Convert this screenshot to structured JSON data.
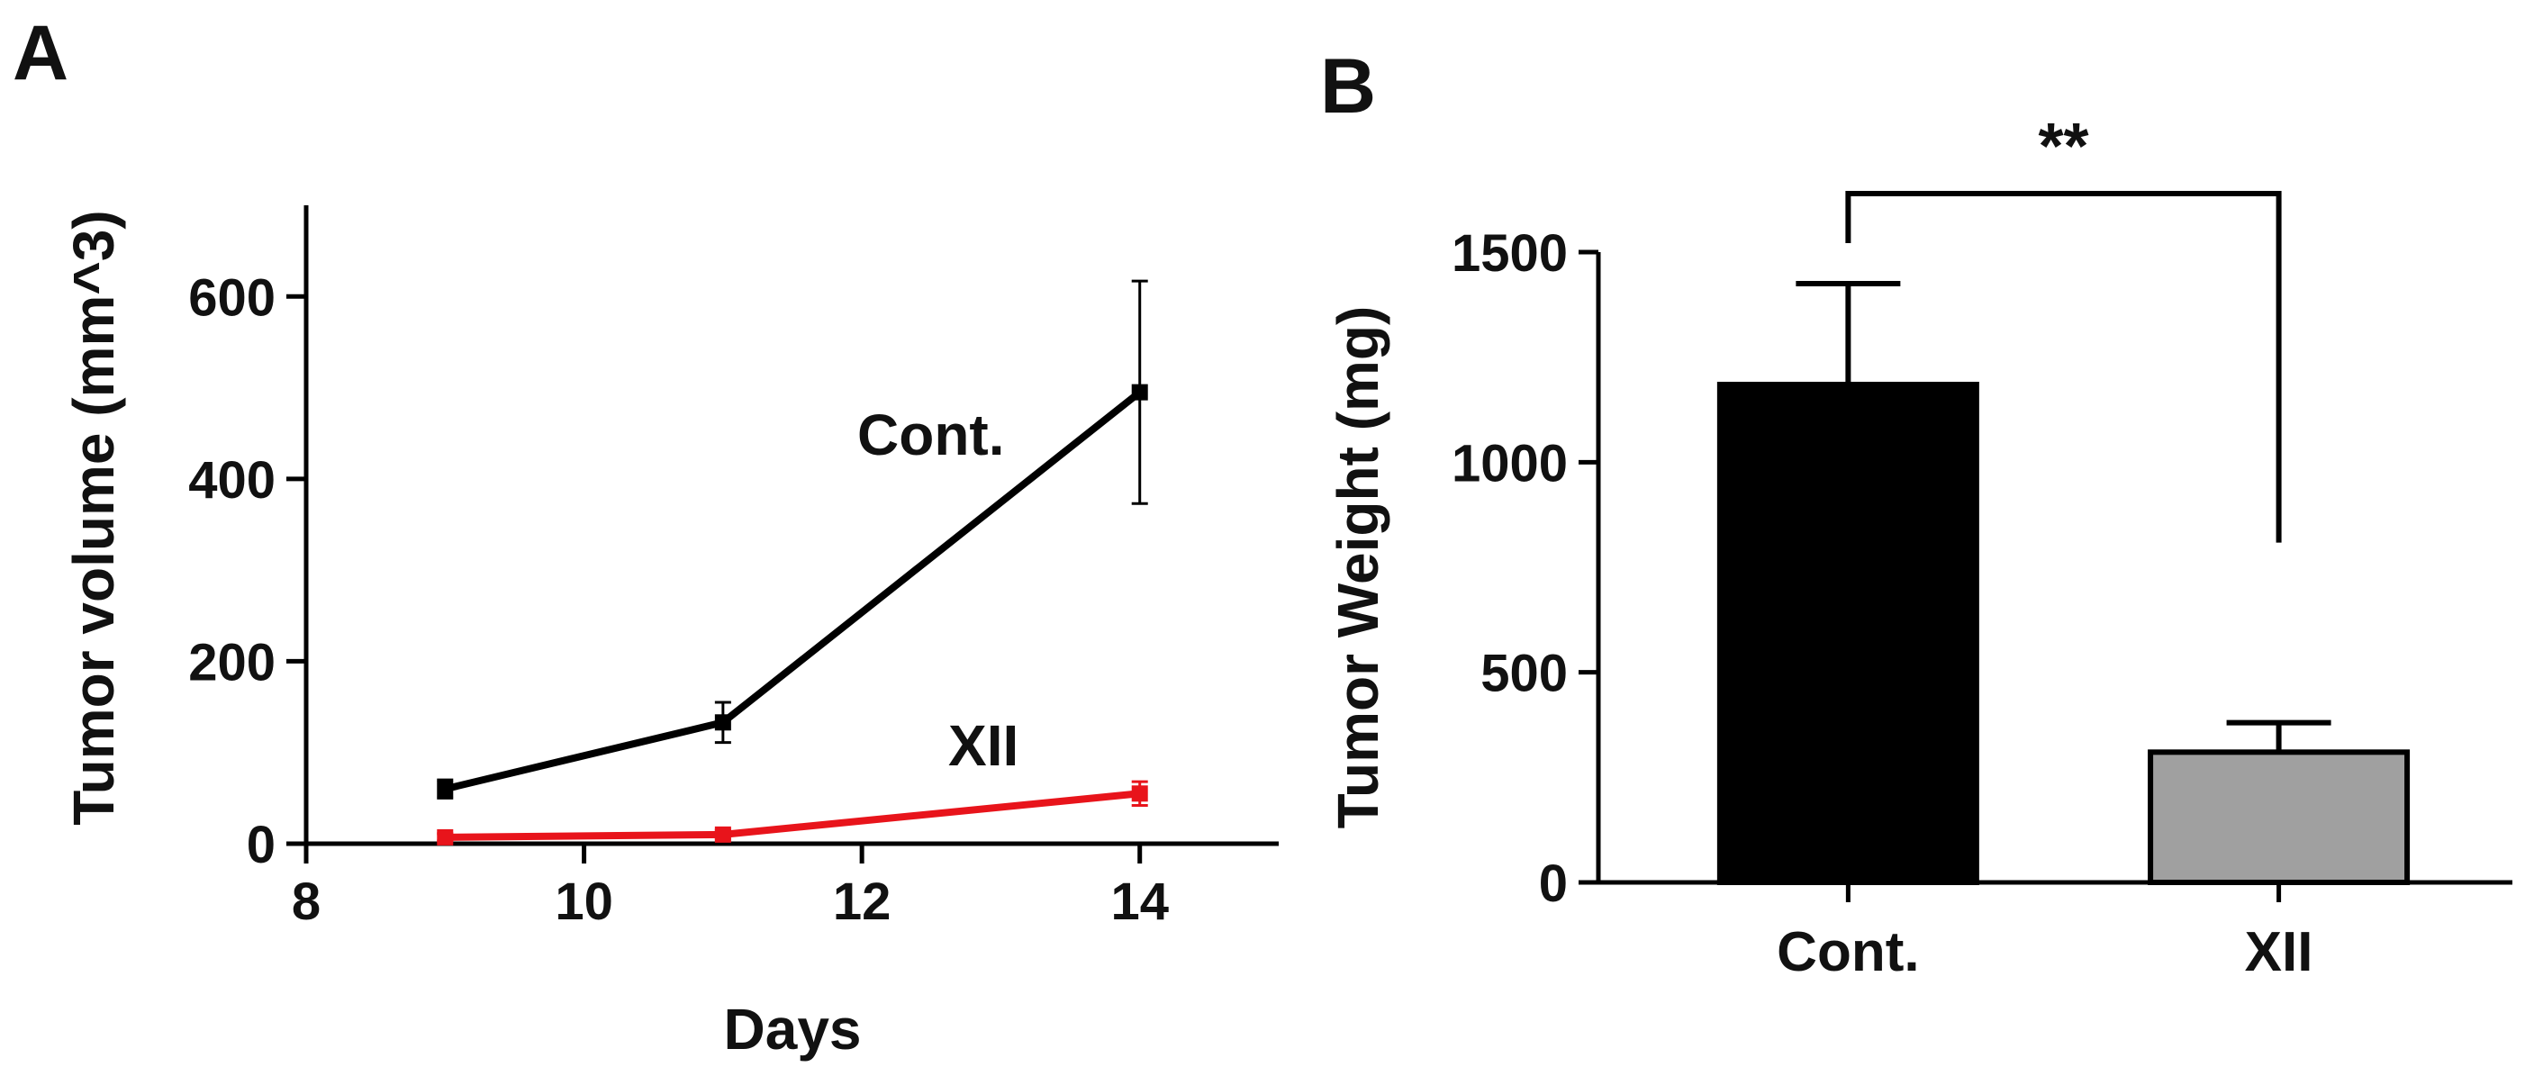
{
  "panel_labels": {
    "a": "A",
    "b": "B"
  },
  "chart_data": [
    {
      "type": "line",
      "panel": "A",
      "title": "",
      "xlabel": "Days",
      "ylabel": "Tumor volume (mm^3)",
      "xlim": [
        8,
        15
      ],
      "ylim": [
        0,
        700
      ],
      "xticks": [
        8,
        10,
        12,
        14
      ],
      "xtick_labels": [
        "8",
        "10",
        "12",
        "14"
      ],
      "yticks": [
        0,
        200,
        400,
        600
      ],
      "ytick_labels": [
        "0",
        "200",
        "400",
        "600"
      ],
      "series": [
        {
          "name": "Cont.",
          "color": "#000000",
          "marker": "square",
          "x": [
            9,
            11,
            14
          ],
          "y": [
            60,
            133,
            495
          ],
          "err": [
            10,
            22,
            122
          ]
        },
        {
          "name": "XII",
          "color": "#e8141b",
          "marker": "square",
          "x": [
            9,
            11,
            14
          ],
          "y": [
            7,
            10,
            55
          ],
          "err": [
            4,
            5,
            13
          ]
        }
      ]
    },
    {
      "type": "bar",
      "panel": "B",
      "title": "",
      "xlabel": "",
      "ylabel": "Tumor Weight (mg)",
      "ylim": [
        0,
        1500
      ],
      "yticks": [
        0,
        500,
        1000,
        1500
      ],
      "ytick_labels": [
        "0",
        "500",
        "1000",
        "1500"
      ],
      "categories": [
        "Cont.",
        "XII"
      ],
      "values": [
        1185,
        310
      ],
      "err": [
        240,
        70
      ],
      "colors": [
        "#000000",
        "#a0a0a0"
      ],
      "significance": {
        "between": [
          "Cont.",
          "XII"
        ],
        "label": "**"
      }
    }
  ]
}
